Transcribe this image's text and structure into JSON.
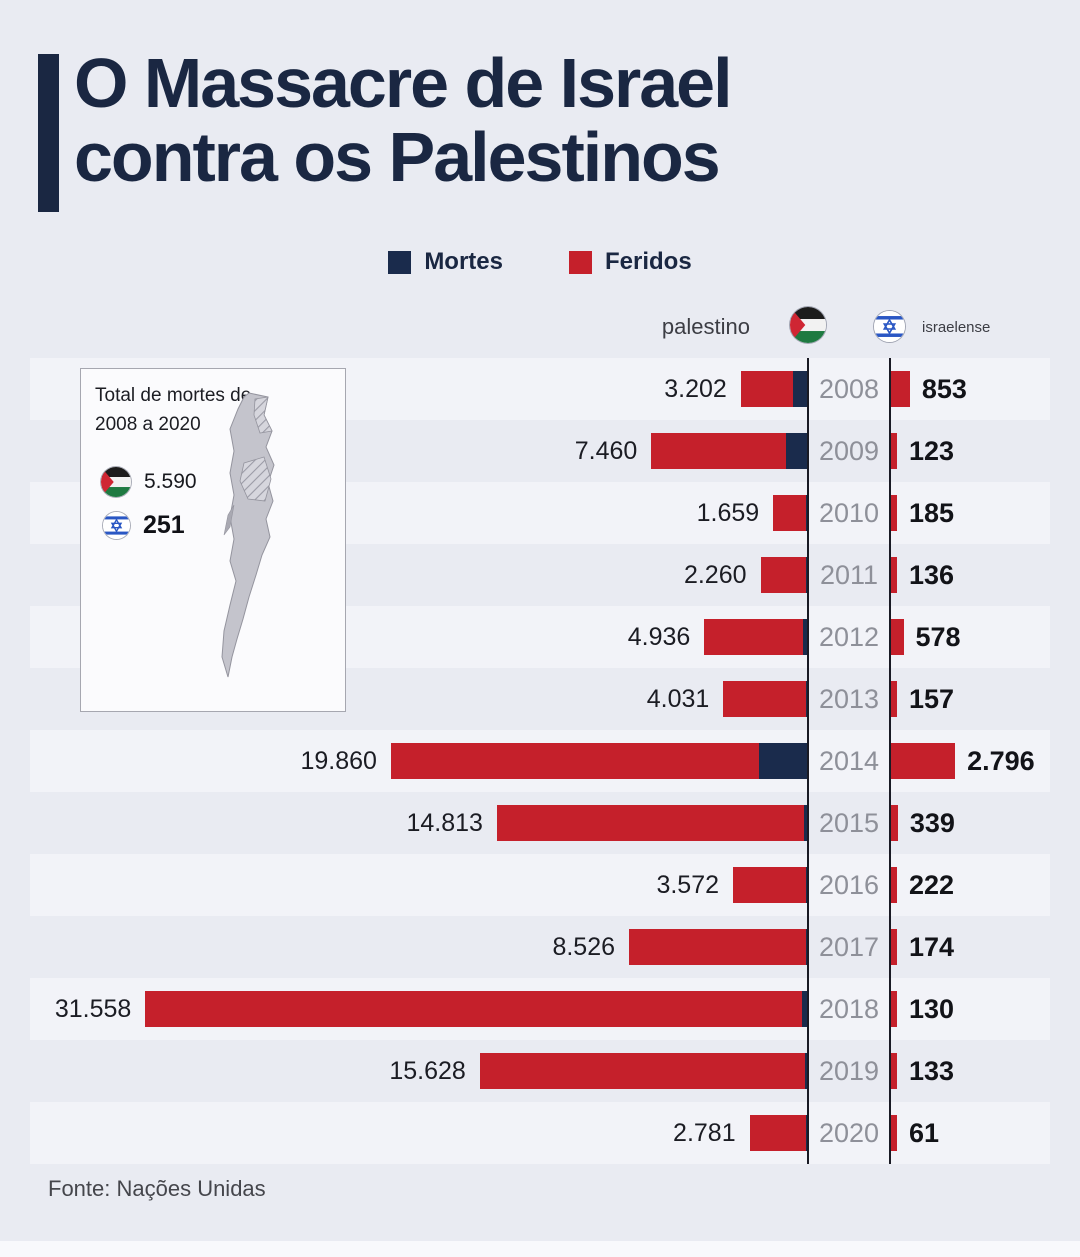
{
  "page": {
    "background": "#e9ebf2",
    "stripe": "#f2f3f8"
  },
  "title": {
    "line1": "O Massacre de Israel",
    "line2": "contra os Palestinos",
    "color": "#1a2742"
  },
  "legend": {
    "items": [
      {
        "label": "Mortes",
        "color": "#1a2b4c"
      },
      {
        "label": "Feridos",
        "color": "#c5202b"
      }
    ]
  },
  "columns": {
    "left": "palestino",
    "right": "israelense"
  },
  "inset": {
    "title_line1": "Total de mortes de",
    "title_line2": "2008 a 2020",
    "palestino_total": "5.590",
    "israelense_total": "251"
  },
  "footer": {
    "source": "Fonte: Nações Unidas"
  },
  "chart_data": {
    "type": "bar",
    "orientation": "horizontal diverging, years 2008-2020 in center column",
    "categories": [
      "2008",
      "2009",
      "2010",
      "2011",
      "2012",
      "2013",
      "2014",
      "2015",
      "2016",
      "2017",
      "2018",
      "2019",
      "2020"
    ],
    "series": [
      {
        "name": "palestino (Feridos)",
        "color": "#c5202b",
        "values": [
          3202,
          7460,
          1659,
          2260,
          4936,
          4031,
          19860,
          14813,
          3572,
          8526,
          31558,
          15628,
          2781
        ]
      },
      {
        "name": "israelense",
        "color": "#c5202b",
        "values": [
          853,
          123,
          185,
          136,
          578,
          157,
          2796,
          339,
          222,
          174,
          130,
          133,
          61
        ]
      },
      {
        "name": "Mortes palestinas (segmento escuro, estimado visualmente, sem rótulo)",
        "color": "#1a2b4c",
        "values": [
          700,
          1050,
          90,
          120,
          260,
          45,
          2330,
          175,
          110,
          80,
          300,
          140,
          30
        ]
      }
    ],
    "value_labels_palestino": [
      "3.202",
      "7.460",
      "1.659",
      "2.260",
      "4.936",
      "4.031",
      "19.860",
      "14.813",
      "3.572",
      "8.526",
      "31.558",
      "15.628",
      "2.781"
    ],
    "value_labels_israelense": [
      "853",
      "123",
      "185",
      "136",
      "578",
      "157",
      "2.796",
      "339",
      "222",
      "174",
      "130",
      "133",
      "61"
    ],
    "totals": {
      "mortes_palestino_2008_2020": "5.590",
      "mortes_israelense_2008_2020": "251"
    },
    "legend": [
      "Mortes",
      "Feridos"
    ],
    "source": "Fonte: Nações Unidas",
    "grid": false,
    "legend_position": "top-center"
  }
}
